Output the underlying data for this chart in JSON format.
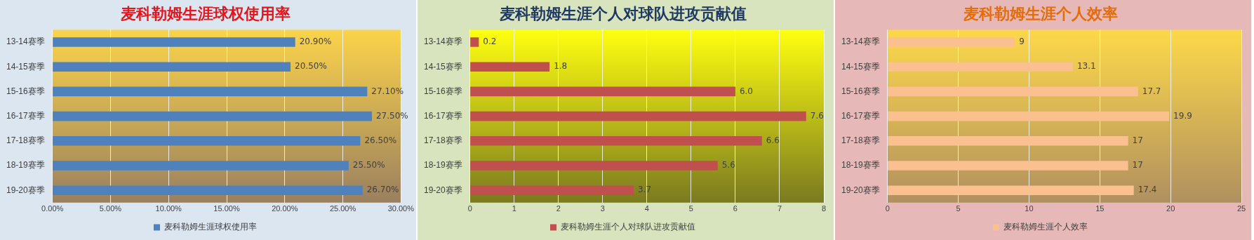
{
  "chart_data": [
    {
      "type": "bar",
      "orientation": "horizontal",
      "title": "麦科勒姆生涯球权使用率",
      "categories": [
        "13-14赛季",
        "14-15赛季",
        "15-16赛季",
        "16-17赛季",
        "17-18赛季",
        "18-19赛季",
        "19-20赛季"
      ],
      "series": [
        {
          "name": "麦科勒姆生涯球权使用率",
          "color": "#4f81bd",
          "values": [
            20.9,
            20.5,
            27.1,
            27.5,
            26.5,
            25.5,
            26.7
          ],
          "value_labels": [
            "20.90%",
            "20.50%",
            "27.10%",
            "27.50%",
            "26.50%",
            "25.50%",
            "26.70%"
          ]
        }
      ],
      "xlim": [
        0,
        30
      ],
      "xticks": [
        {
          "value": 0,
          "label": "0.00%"
        },
        {
          "value": 5,
          "label": "5.00%"
        },
        {
          "value": 10,
          "label": "10.00%"
        },
        {
          "value": 15,
          "label": "15.00%"
        },
        {
          "value": 20,
          "label": "20.00%"
        },
        {
          "value": 25,
          "label": "25.00%"
        },
        {
          "value": 30,
          "label": "30.00%"
        }
      ],
      "grid": "x",
      "legend": "bottom"
    },
    {
      "type": "bar",
      "orientation": "horizontal",
      "title": "麦科勒姆生涯个人对球队进攻贡献值",
      "categories": [
        "13-14赛季",
        "14-15赛季",
        "15-16赛季",
        "16-17赛季",
        "17-18赛季",
        "18-19赛季",
        "19-20赛季"
      ],
      "series": [
        {
          "name": "麦科勒姆生涯个人对球队进攻贡献值",
          "color": "#c0504d",
          "values": [
            0.2,
            1.8,
            6.0,
            7.6,
            6.6,
            5.6,
            3.7
          ],
          "value_labels": [
            "0.2",
            "1.8",
            "6.0",
            "7.6",
            "6.6",
            "5.6",
            "3.7"
          ]
        }
      ],
      "xlim": [
        0,
        8
      ],
      "xticks": [
        0,
        1,
        2,
        3,
        4,
        5,
        6,
        7,
        8
      ],
      "grid": "x",
      "legend": "bottom"
    },
    {
      "type": "bar",
      "orientation": "horizontal",
      "title": "麦科勒姆生涯个人效率",
      "categories": [
        "13-14赛季",
        "14-15赛季",
        "15-16赛季",
        "16-17赛季",
        "17-18赛季",
        "18-19赛季",
        "19-20赛季"
      ],
      "series": [
        {
          "name": "麦科勒姆生涯个人效率",
          "color": "#fac090",
          "values": [
            9,
            13.1,
            17.7,
            19.9,
            17,
            17,
            17.4
          ]
        }
      ],
      "xlim": [
        0,
        25
      ],
      "xticks": [
        0,
        5,
        10,
        15,
        20,
        25
      ],
      "grid": "x",
      "legend": "bottom",
      "data_labels": true
    }
  ]
}
